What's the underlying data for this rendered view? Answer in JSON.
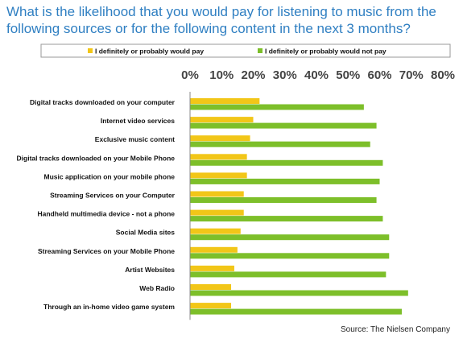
{
  "title": "What is the likelihood that you would pay for listening to music from the following sources or for the following content in the next 3 months?",
  "source": "Source: The Nielsen Company",
  "colors": {
    "would_pay": "#f2c618",
    "would_not_pay": "#7dbf2a"
  },
  "chart_data": {
    "type": "bar",
    "orientation": "horizontal",
    "legend_position": "top",
    "grid": false,
    "xlim": [
      0,
      80
    ],
    "x_ticks": [
      "0%",
      "10%",
      "20%",
      "30%",
      "40%",
      "50%",
      "60%",
      "70%",
      "80%"
    ],
    "categories": [
      "Digital tracks downloaded on your computer",
      "Internet video services",
      "Exclusive music content",
      "Digital tracks downloaded on your Mobile Phone",
      "Music application on your mobile phone",
      "Streaming Services on your Computer",
      "Handheld multimedia device - not a phone",
      "Social Media sites",
      "Streaming Services on your Mobile Phone",
      "Artist Websites",
      "Web Radio",
      "Through an in-home video game system"
    ],
    "series": [
      {
        "name": "I definitely or probably would pay",
        "values": [
          22,
          20,
          19,
          18,
          18,
          17,
          17,
          16,
          15,
          14,
          13,
          13
        ]
      },
      {
        "name": "I definitely or probably would not pay",
        "values": [
          55,
          59,
          57,
          61,
          60,
          59,
          61,
          63,
          63,
          62,
          69,
          67
        ]
      }
    ]
  }
}
